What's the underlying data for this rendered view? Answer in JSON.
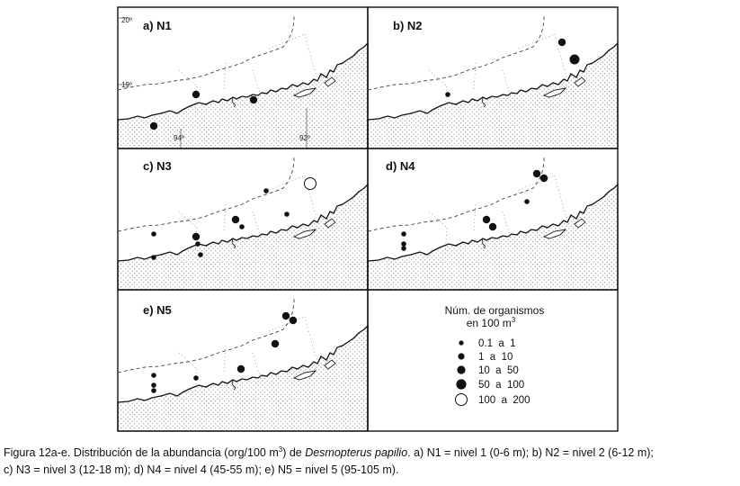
{
  "panels": [
    {
      "id": "N1",
      "title": "a) N1"
    },
    {
      "id": "N2",
      "title": "b) N2"
    },
    {
      "id": "N3",
      "title": "c) N3"
    },
    {
      "id": "N4",
      "title": "d) N4"
    },
    {
      "id": "N5",
      "title": "e) N5"
    }
  ],
  "map_labels": {
    "lat_top": "20º",
    "lat_mid": "19º",
    "lon_left": "94º",
    "lon_right": "92º"
  },
  "legend": {
    "title_line1": "Núm. de organismos",
    "title_line2_prefix": "en 100 m",
    "title_line2_sup": "3",
    "classes": [
      {
        "label": "0.1  a  1",
        "fill": "#111111"
      },
      {
        "label": "1  a  10",
        "fill": "#111111"
      },
      {
        "label": "10  a  50",
        "fill": "#111111"
      },
      {
        "label": "50  a  100",
        "fill": "#111111"
      },
      {
        "label": "100  a  200",
        "fill": "#ffffff"
      }
    ]
  },
  "caption": {
    "part1": "Figura 12a-e. Distribución de la abundancia (org/100 m",
    "sup": "3",
    "part2": ") de ",
    "species": "Desmopterus papilio",
    "part3": ". a) N1 = nivel 1 (0-6 m); b) N2 = nivel 2 (6-12 m);",
    "line2": "c) N3 = nivel 3 (12-18 m); d) N4 = nivel 4 (45-55 m); e) N5 = nivel 5 (95-105 m)."
  },
  "colors": {
    "ink": "#111111",
    "land_dot": "#8a8a8a"
  }
}
